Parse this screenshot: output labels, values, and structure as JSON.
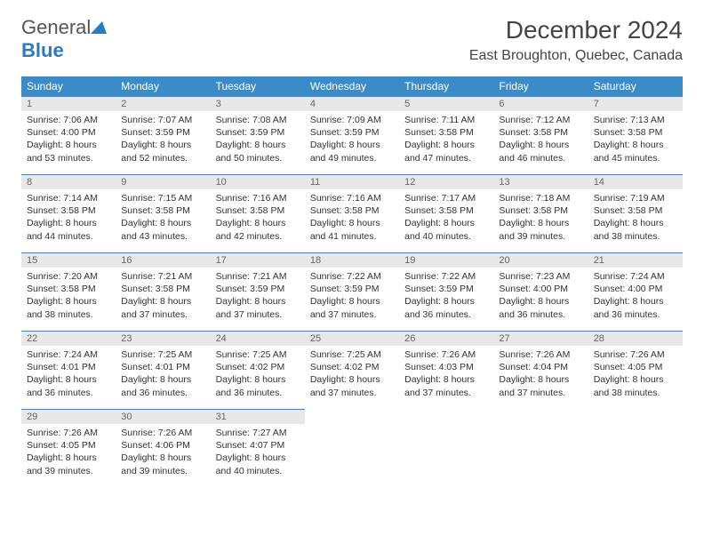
{
  "logo": {
    "text1": "General",
    "text2": "Blue"
  },
  "title": "December 2024",
  "location": "East Broughton, Quebec, Canada",
  "colors": {
    "header_bg": "#3b8bc9",
    "header_text": "#ffffff",
    "daynum_bg": "#e8e8e8",
    "daynum_text": "#666666",
    "body_text": "#333333",
    "border": "#3b8bc9",
    "logo_blue": "#2b7bbf"
  },
  "columns": [
    "Sunday",
    "Monday",
    "Tuesday",
    "Wednesday",
    "Thursday",
    "Friday",
    "Saturday"
  ],
  "weeks": [
    [
      {
        "n": "1",
        "sr": "7:06 AM",
        "ss": "4:00 PM",
        "dl": "8 hours and 53 minutes."
      },
      {
        "n": "2",
        "sr": "7:07 AM",
        "ss": "3:59 PM",
        "dl": "8 hours and 52 minutes."
      },
      {
        "n": "3",
        "sr": "7:08 AM",
        "ss": "3:59 PM",
        "dl": "8 hours and 50 minutes."
      },
      {
        "n": "4",
        "sr": "7:09 AM",
        "ss": "3:59 PM",
        "dl": "8 hours and 49 minutes."
      },
      {
        "n": "5",
        "sr": "7:11 AM",
        "ss": "3:58 PM",
        "dl": "8 hours and 47 minutes."
      },
      {
        "n": "6",
        "sr": "7:12 AM",
        "ss": "3:58 PM",
        "dl": "8 hours and 46 minutes."
      },
      {
        "n": "7",
        "sr": "7:13 AM",
        "ss": "3:58 PM",
        "dl": "8 hours and 45 minutes."
      }
    ],
    [
      {
        "n": "8",
        "sr": "7:14 AM",
        "ss": "3:58 PM",
        "dl": "8 hours and 44 minutes."
      },
      {
        "n": "9",
        "sr": "7:15 AM",
        "ss": "3:58 PM",
        "dl": "8 hours and 43 minutes."
      },
      {
        "n": "10",
        "sr": "7:16 AM",
        "ss": "3:58 PM",
        "dl": "8 hours and 42 minutes."
      },
      {
        "n": "11",
        "sr": "7:16 AM",
        "ss": "3:58 PM",
        "dl": "8 hours and 41 minutes."
      },
      {
        "n": "12",
        "sr": "7:17 AM",
        "ss": "3:58 PM",
        "dl": "8 hours and 40 minutes."
      },
      {
        "n": "13",
        "sr": "7:18 AM",
        "ss": "3:58 PM",
        "dl": "8 hours and 39 minutes."
      },
      {
        "n": "14",
        "sr": "7:19 AM",
        "ss": "3:58 PM",
        "dl": "8 hours and 38 minutes."
      }
    ],
    [
      {
        "n": "15",
        "sr": "7:20 AM",
        "ss": "3:58 PM",
        "dl": "8 hours and 38 minutes."
      },
      {
        "n": "16",
        "sr": "7:21 AM",
        "ss": "3:58 PM",
        "dl": "8 hours and 37 minutes."
      },
      {
        "n": "17",
        "sr": "7:21 AM",
        "ss": "3:59 PM",
        "dl": "8 hours and 37 minutes."
      },
      {
        "n": "18",
        "sr": "7:22 AM",
        "ss": "3:59 PM",
        "dl": "8 hours and 37 minutes."
      },
      {
        "n": "19",
        "sr": "7:22 AM",
        "ss": "3:59 PM",
        "dl": "8 hours and 36 minutes."
      },
      {
        "n": "20",
        "sr": "7:23 AM",
        "ss": "4:00 PM",
        "dl": "8 hours and 36 minutes."
      },
      {
        "n": "21",
        "sr": "7:24 AM",
        "ss": "4:00 PM",
        "dl": "8 hours and 36 minutes."
      }
    ],
    [
      {
        "n": "22",
        "sr": "7:24 AM",
        "ss": "4:01 PM",
        "dl": "8 hours and 36 minutes."
      },
      {
        "n": "23",
        "sr": "7:25 AM",
        "ss": "4:01 PM",
        "dl": "8 hours and 36 minutes."
      },
      {
        "n": "24",
        "sr": "7:25 AM",
        "ss": "4:02 PM",
        "dl": "8 hours and 36 minutes."
      },
      {
        "n": "25",
        "sr": "7:25 AM",
        "ss": "4:02 PM",
        "dl": "8 hours and 37 minutes."
      },
      {
        "n": "26",
        "sr": "7:26 AM",
        "ss": "4:03 PM",
        "dl": "8 hours and 37 minutes."
      },
      {
        "n": "27",
        "sr": "7:26 AM",
        "ss": "4:04 PM",
        "dl": "8 hours and 37 minutes."
      },
      {
        "n": "28",
        "sr": "7:26 AM",
        "ss": "4:05 PM",
        "dl": "8 hours and 38 minutes."
      }
    ],
    [
      {
        "n": "29",
        "sr": "7:26 AM",
        "ss": "4:05 PM",
        "dl": "8 hours and 39 minutes."
      },
      {
        "n": "30",
        "sr": "7:26 AM",
        "ss": "4:06 PM",
        "dl": "8 hours and 39 minutes."
      },
      {
        "n": "31",
        "sr": "7:27 AM",
        "ss": "4:07 PM",
        "dl": "8 hours and 40 minutes."
      },
      null,
      null,
      null,
      null
    ]
  ],
  "labels": {
    "sunrise": "Sunrise:",
    "sunset": "Sunset:",
    "daylight": "Daylight:"
  }
}
